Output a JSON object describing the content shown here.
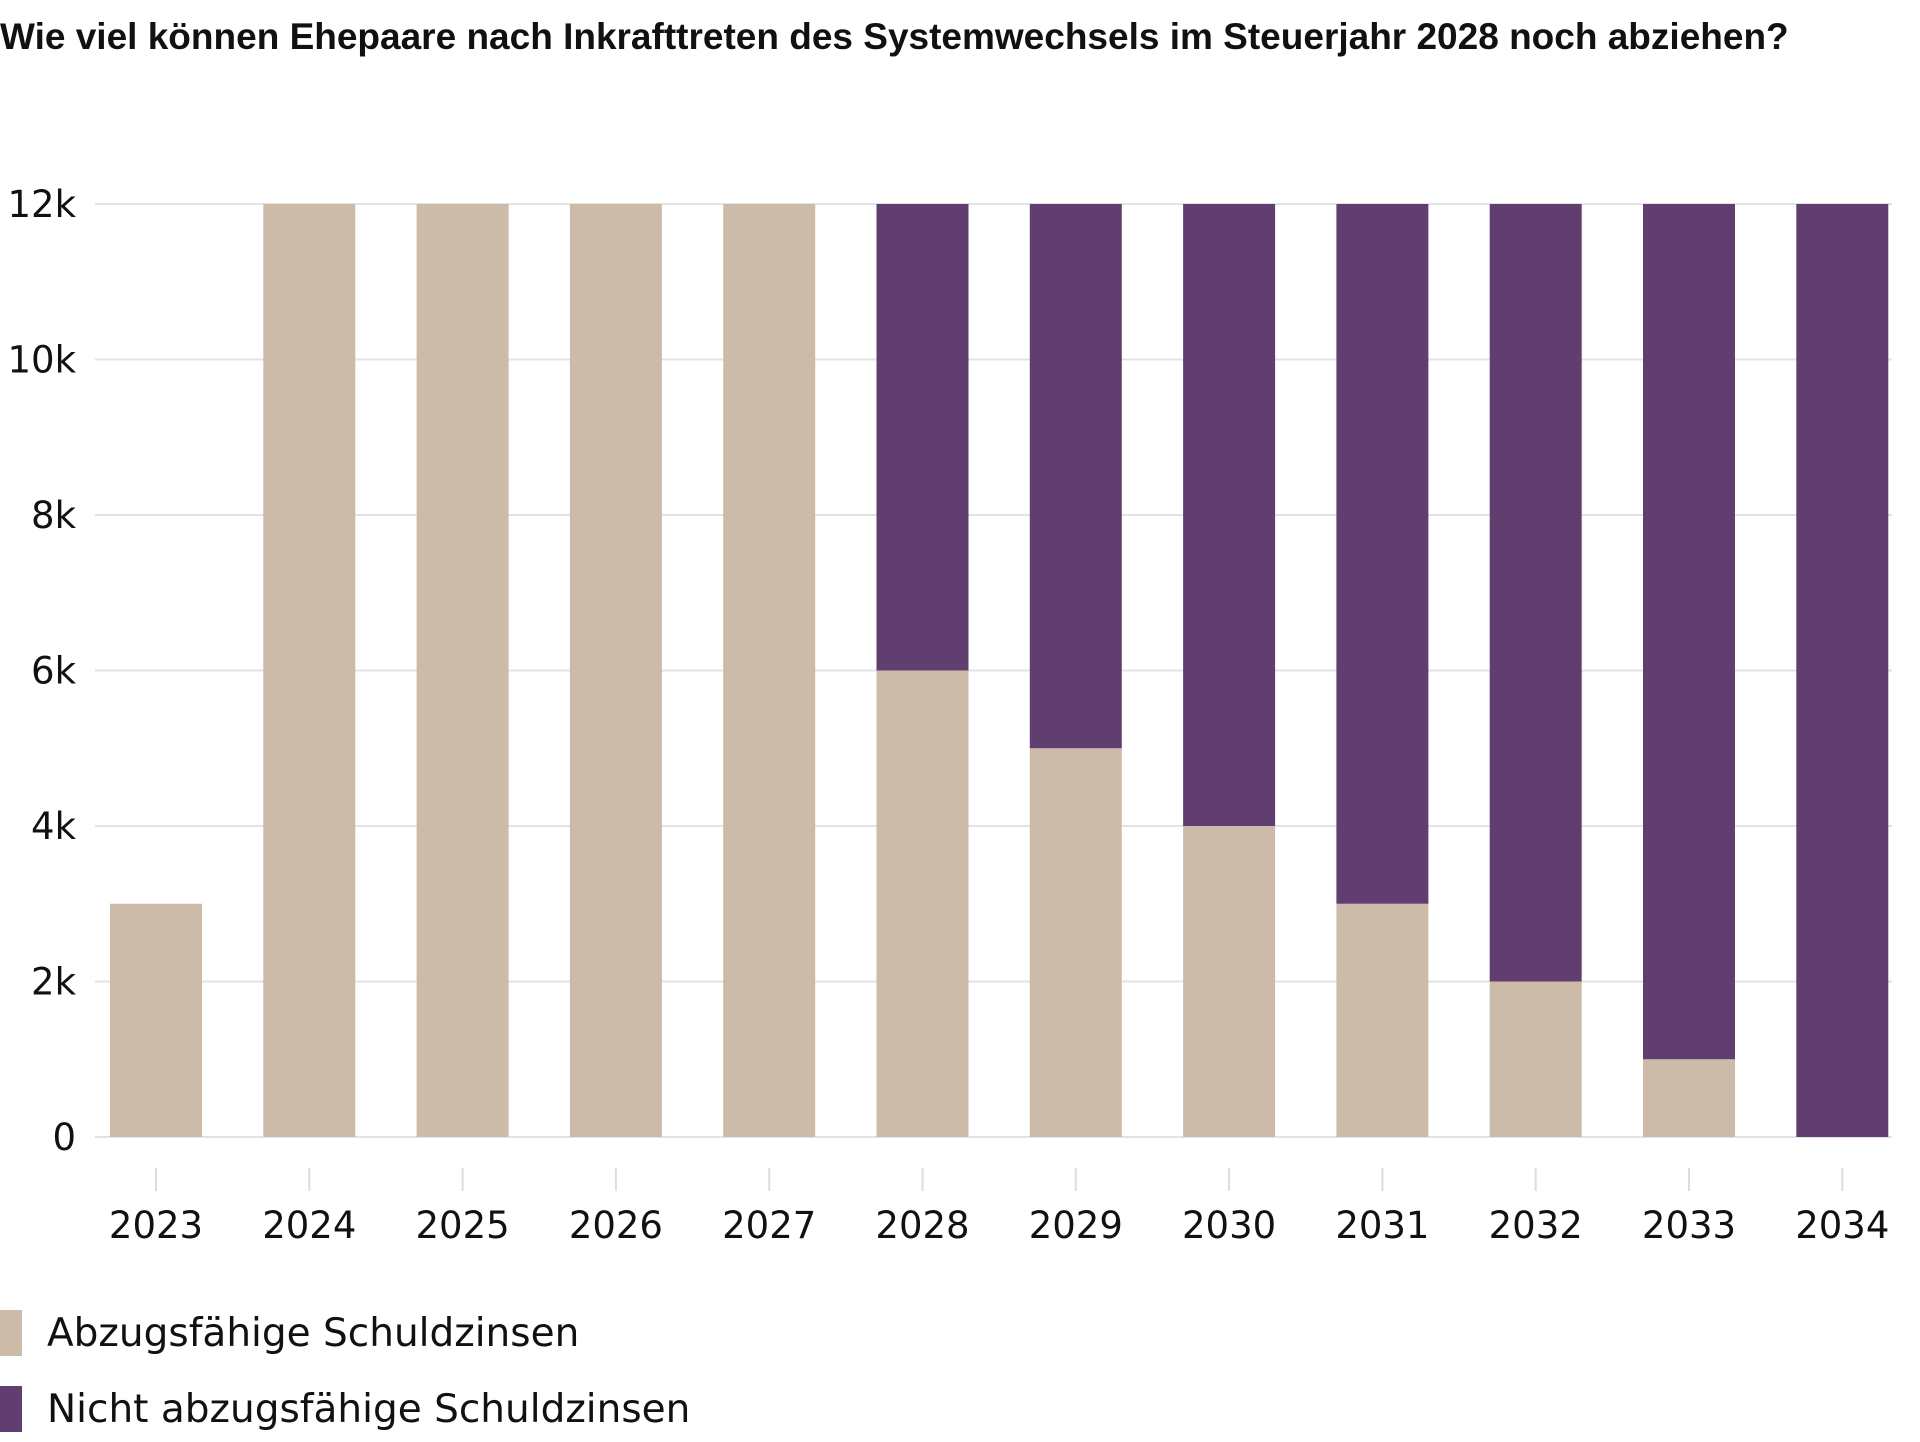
{
  "chart_data": {
    "type": "bar",
    "stacked": true,
    "title": "Wie viel können Ehepaare nach Inkrafttreten des Systemwechsels im Steuerjahr 2028 noch abziehen?",
    "xlabel": "",
    "ylabel": "",
    "ylim": [
      0,
      12000
    ],
    "yticks": [
      0,
      2000,
      4000,
      6000,
      8000,
      10000,
      12000
    ],
    "ytick_labels": [
      "0",
      "2k",
      "4k",
      "6k",
      "8k",
      "10k",
      "12k"
    ],
    "grid": true,
    "legend_position": "bottom-left",
    "categories": [
      "2023",
      "2024",
      "2025",
      "2026",
      "2027",
      "2028",
      "2029",
      "2030",
      "2031",
      "2032",
      "2033",
      "2034"
    ],
    "series": [
      {
        "name": "Abzugsfähige Schuldzinsen",
        "color": "#cdbbaa",
        "values": [
          3000,
          12000,
          12000,
          12000,
          12000,
          6000,
          5000,
          4000,
          3000,
          2000,
          1000,
          0
        ]
      },
      {
        "name": "Nicht abzugsfähige Schuldzinsen",
        "color": "#603f70",
        "values": [
          0,
          0,
          0,
          0,
          0,
          6000,
          7000,
          8000,
          9000,
          10000,
          11000,
          12000
        ]
      }
    ]
  }
}
